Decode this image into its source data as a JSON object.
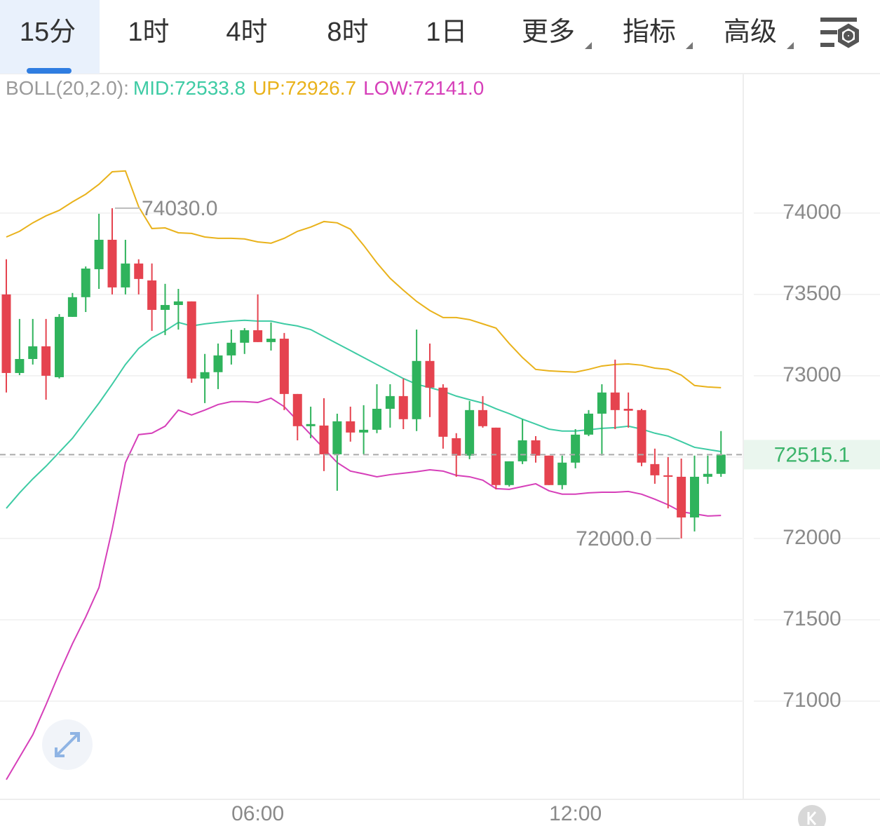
{
  "tabs": {
    "items": [
      "15分",
      "1时",
      "4时",
      "8时",
      "1日",
      "更多",
      "指标",
      "高级"
    ],
    "active": 0
  },
  "chart_data": {
    "type": "candlestick",
    "indicator": "BOLL(20,2.0):",
    "categories": [
      null,
      null,
      null,
      null,
      null,
      null,
      null,
      null,
      null,
      null,
      null,
      null,
      null,
      null,
      null,
      null,
      null,
      null,
      null,
      "06:00",
      null,
      null,
      null,
      null,
      null,
      null,
      null,
      null,
      null,
      null,
      null,
      null,
      null,
      null,
      null,
      null,
      null,
      null,
      null,
      null,
      null,
      null,
      null,
      "12:00",
      null,
      null,
      null,
      null,
      null,
      null,
      null,
      null,
      null,
      null,
      null
    ],
    "open": [
      73500,
      73017,
      73103,
      73181,
      72991,
      73362,
      73483,
      73655,
      73836,
      73543,
      73690,
      73586,
      73405,
      73435,
      73457,
      72983,
      73022,
      73125,
      73203,
      73280,
      73207,
      73228,
      72888,
      72690,
      72694,
      72517,
      72720,
      72651,
      72668,
      72797,
      72875,
      72733,
      73091,
      72927,
      72616,
      72509,
      72789,
      72681,
      72328,
      72474,
      72603,
      72509,
      72328,
      72466,
      72638,
      72767,
      72897,
      72797,
      72789,
      72457,
      72388,
      72379,
      72129,
      72379,
      72397
    ],
    "high": [
      73716,
      73349,
      73349,
      73349,
      73379,
      73509,
      73672,
      73996,
      74030,
      73836,
      73716,
      73690,
      73565,
      73534,
      73457,
      73134,
      73198,
      73284,
      73293,
      73500,
      73328,
      73263,
      72888,
      72810,
      72862,
      72767,
      72810,
      72819,
      72948,
      72948,
      72983,
      73284,
      73198,
      72948,
      72647,
      72845,
      72875,
      72681,
      72474,
      72733,
      72629,
      72509,
      72509,
      72672,
      72789,
      72948,
      73099,
      72897,
      72797,
      72552,
      72500,
      72491,
      72509,
      72509,
      72660
    ],
    "low": [
      72897,
      73004,
      73069,
      72853,
      72983,
      73362,
      73392,
      73534,
      73500,
      73500,
      73500,
      73276,
      73250,
      73284,
      72957,
      72832,
      72918,
      73069,
      73134,
      73207,
      73155,
      72789,
      72603,
      72616,
      72414,
      72293,
      72595,
      72517,
      72647,
      72681,
      72672,
      72660,
      72746,
      72552,
      72379,
      72487,
      72681,
      72302,
      72319,
      72457,
      72466,
      72328,
      72302,
      72431,
      72629,
      72509,
      72672,
      72681,
      72444,
      72336,
      72185,
      72000,
      72043,
      72336,
      72379
    ],
    "close": [
      73017,
      73103,
      73181,
      73000,
      73362,
      73483,
      73659,
      73836,
      73543,
      73690,
      73595,
      73405,
      73435,
      73457,
      72983,
      73022,
      73125,
      73203,
      73280,
      73207,
      73228,
      72888,
      72690,
      72703,
      72517,
      72720,
      72651,
      72668,
      72797,
      72875,
      72733,
      73091,
      72927,
      72625,
      72509,
      72789,
      72690,
      72328,
      72474,
      72603,
      72509,
      72328,
      72466,
      72638,
      72767,
      72897,
      72789,
      72785,
      72466,
      72388,
      72379,
      72129,
      72379,
      72397,
      72515.1
    ],
    "up_color": "#2fb35c",
    "down_color": "#e5434f",
    "series": [
      {
        "name": "MID:72533.8",
        "color": "#3ecba4",
        "values": [
          72185,
          72280,
          72366,
          72444,
          72530,
          72616,
          72724,
          72832,
          72948,
          73069,
          73168,
          73233,
          73276,
          73328,
          73306,
          73319,
          73328,
          73336,
          73341,
          73336,
          73336,
          73319,
          73306,
          73284,
          73241,
          73198,
          73155,
          73112,
          73069,
          73026,
          72983,
          72948,
          72927,
          72905,
          72875,
          72853,
          72832,
          72797,
          72767,
          72733,
          72703,
          72672,
          72660,
          72660,
          72668,
          72677,
          72681,
          72690,
          72672,
          72647,
          72629,
          72595,
          72560,
          72547,
          72533.8
        ]
      },
      {
        "name": "UP:72926.7",
        "color": "#e9b21b",
        "values": [
          73853,
          73888,
          73940,
          73983,
          74017,
          74069,
          74116,
          74177,
          74254,
          74259,
          74039,
          73905,
          73909,
          73879,
          73875,
          73853,
          73845,
          73845,
          73841,
          73823,
          73815,
          73845,
          73888,
          73914,
          73948,
          73940,
          73901,
          73802,
          73694,
          73599,
          73526,
          73457,
          73401,
          73358,
          73358,
          73345,
          73319,
          73293,
          73198,
          73112,
          73039,
          73030,
          73026,
          73022,
          73039,
          73060,
          73069,
          73073,
          73065,
          73047,
          73039,
          73004,
          72940,
          72931,
          72926.7
        ]
      },
      {
        "name": "LOW:72141.0",
        "color": "#d63fb9",
        "values": [
          70517,
          70655,
          70793,
          70978,
          71172,
          71353,
          71517,
          71698,
          72056,
          72466,
          72638,
          72647,
          72690,
          72789,
          72759,
          72789,
          72823,
          72841,
          72841,
          72836,
          72862,
          72810,
          72724,
          72638,
          72552,
          72466,
          72414,
          72397,
          72379,
          72392,
          72401,
          72410,
          72422,
          72414,
          72388,
          72379,
          72358,
          72306,
          72302,
          72319,
          72336,
          72293,
          72272,
          72272,
          72280,
          72284,
          72284,
          72289,
          72272,
          72241,
          72207,
          72164,
          72151,
          72138,
          72141
        ]
      }
    ],
    "ylim": [
      70396,
      74853
    ],
    "yticks": [
      71000,
      71500,
      72000,
      72500,
      73000,
      73500,
      74000
    ],
    "grid": true,
    "last_price": 72515.1,
    "annotations": [
      {
        "value": 74030,
        "label": "74030.0"
      },
      {
        "value": 72000,
        "label": "72000.0"
      }
    ]
  }
}
